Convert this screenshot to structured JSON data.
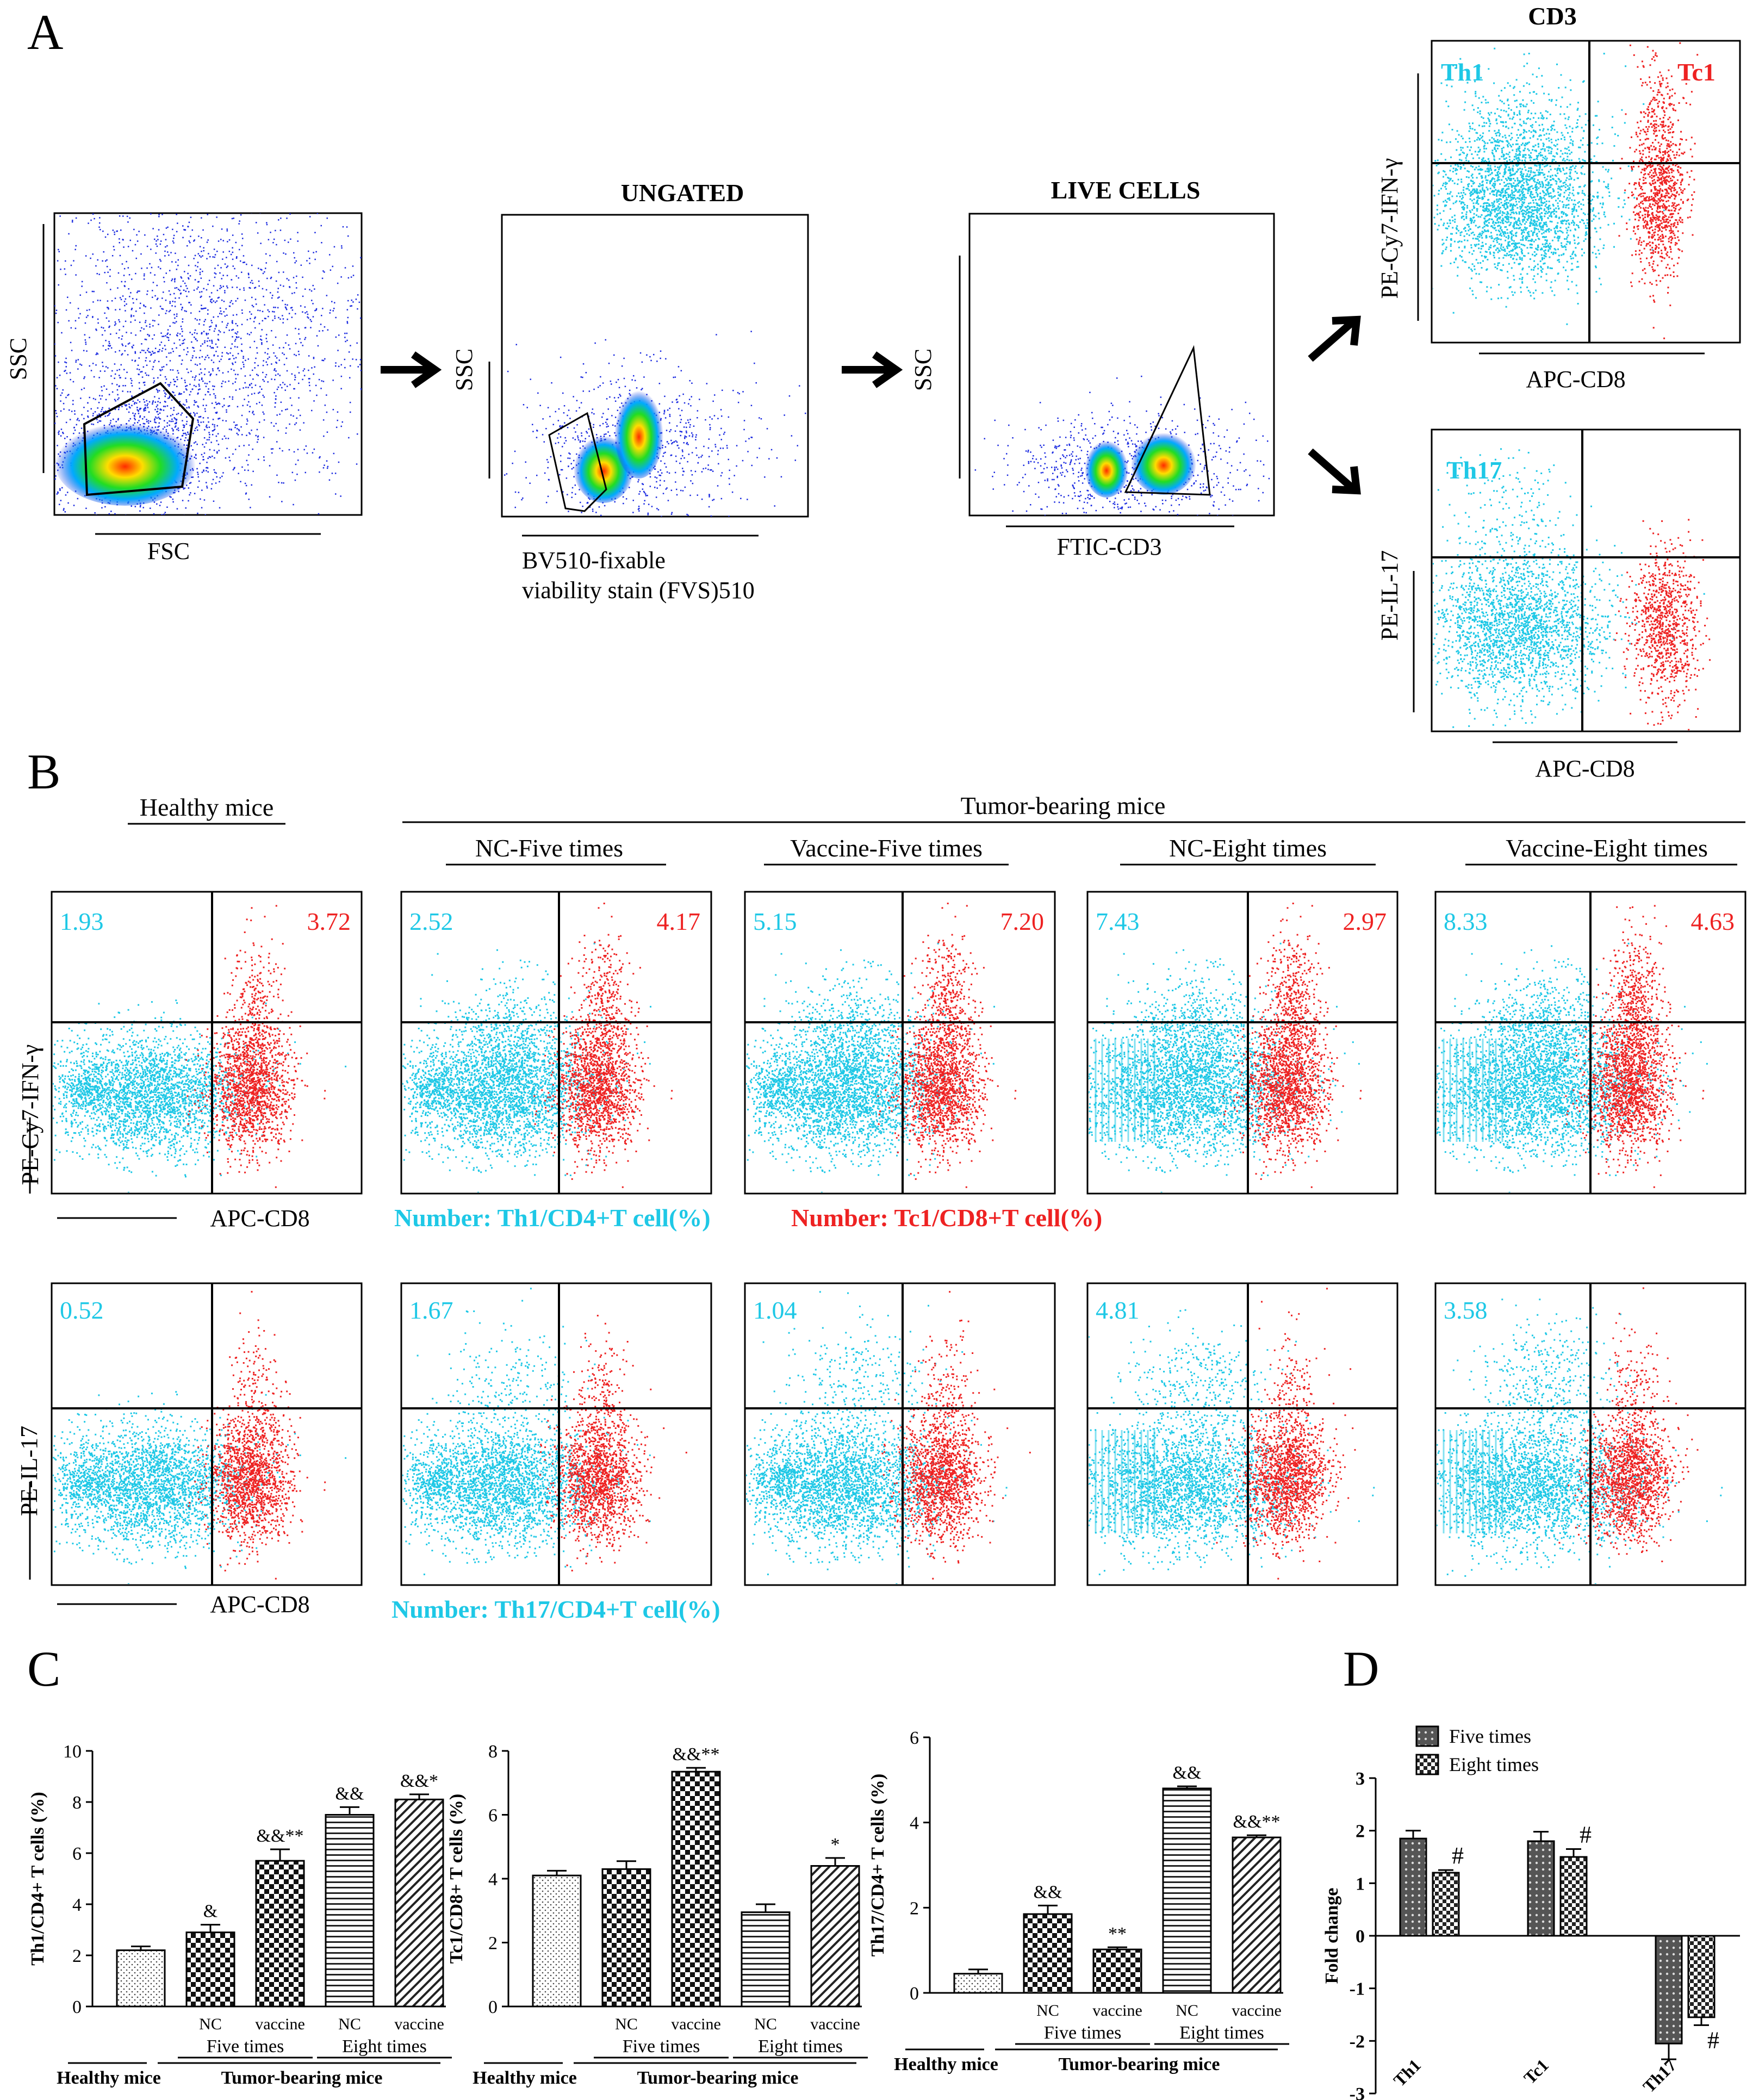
{
  "colors": {
    "cyan": "#1ec8e6",
    "red": "#ee2222",
    "black": "#000000"
  },
  "panels": {
    "A": "A",
    "B": "B",
    "C": "C",
    "D": "D"
  },
  "panelA": {
    "plot1": {
      "ylabel": "SSC",
      "xlabel": "FSC"
    },
    "plot2": {
      "title": "UNGATED",
      "ylabel": "SSC",
      "xlabel_line1": "BV510-fixable",
      "xlabel_line2": "viability stain (FVS)510"
    },
    "plot3": {
      "title": "LIVE CELLS",
      "ylabel": "SSC",
      "xlabel": "FTIC-CD3"
    },
    "plot4": {
      "title": "CD3",
      "ylabel": "PE-Cy7-IFN-γ",
      "xlabel": "APC-CD8",
      "q_left": "Th1",
      "q_right": "Tc1"
    },
    "plot5": {
      "ylabel": "PE-IL-17",
      "xlabel": "APC-CD8",
      "q_left": "Th17"
    }
  },
  "panelB": {
    "healthy_label": "Healthy mice",
    "tumor_label": "Tumor-bearing mice",
    "groups": [
      "NC-Five times",
      "Vaccine-Five times",
      "NC-Eight times",
      "Vaccine-Eight times"
    ],
    "row1": {
      "ylabel": "PE-Cy7-IFN-γ",
      "xlabel": "APC-CD8",
      "th1": [
        "1.93",
        "2.52",
        "5.15",
        "7.43",
        "8.33"
      ],
      "tc1": [
        "3.72",
        "4.17",
        "7.20",
        "2.97",
        "4.63"
      ]
    },
    "row2": {
      "ylabel": "PE-IL-17",
      "xlabel": "APC-CD8",
      "th17": [
        "0.52",
        "1.67",
        "1.04",
        "4.81",
        "3.58"
      ]
    },
    "legend_th1": "Number: Th1/CD4+T cell(%)",
    "legend_tc1": "Number: Tc1/CD8+T cell(%)",
    "legend_th17": "Number: Th17/CD4+T cell(%)"
  },
  "chart_data": [
    {
      "type": "bar",
      "title": "",
      "ylabel": "Th1/CD4+ T cells (%)",
      "ylim": [
        0,
        10
      ],
      "yticks": [
        "0",
        "2",
        "4",
        "6",
        "8",
        "10"
      ],
      "categories": [
        "Healthy mice",
        "NC Five times",
        "vaccine Five times",
        "NC Eight times",
        "vaccine Eight times"
      ],
      "values": [
        2.2,
        2.9,
        5.7,
        7.5,
        8.1
      ],
      "errors": [
        0.15,
        0.3,
        0.45,
        0.3,
        0.2
      ],
      "annotations": [
        "",
        "&",
        "&&**",
        "&&",
        "&&*"
      ],
      "xlabels": {
        "nc": "NC",
        "vaccine": "vaccine",
        "five": "Five times",
        "eight": "Eight times",
        "healthy": "Healthy mice",
        "tumor": "Tumor-bearing mice"
      }
    },
    {
      "type": "bar",
      "title": "",
      "ylabel": "Tc1/CD8+ T cells (%)",
      "ylim": [
        0,
        8
      ],
      "yticks": [
        "0",
        "2",
        "4",
        "6",
        "8"
      ],
      "categories": [
        "Healthy mice",
        "NC Five times",
        "vaccine Five times",
        "NC Eight times",
        "vaccine Eight times"
      ],
      "values": [
        4.1,
        4.3,
        7.35,
        2.95,
        4.4
      ],
      "errors": [
        0.15,
        0.25,
        0.12,
        0.25,
        0.25
      ],
      "annotations": [
        "",
        "",
        "&&**",
        "",
        "*"
      ],
      "xlabels": {
        "nc": "NC",
        "vaccine": "vaccine",
        "five": "Five times",
        "eight": "Eight times",
        "healthy": "Healthy mice",
        "tumor": "Tumor-bearing mice"
      }
    },
    {
      "type": "bar",
      "title": "",
      "ylabel": "Th17/CD4+ T cells (%)",
      "ylim": [
        0,
        6
      ],
      "yticks": [
        "0",
        "2",
        "4",
        "6"
      ],
      "categories": [
        "Healthy mice",
        "NC Five times",
        "vaccine Five times",
        "NC Eight times",
        "vaccine Eight times"
      ],
      "values": [
        0.45,
        1.85,
        1.02,
        4.8,
        3.65
      ],
      "errors": [
        0.1,
        0.2,
        0.05,
        0.05,
        0.05
      ],
      "annotations": [
        "",
        "&&",
        "**",
        "&&",
        "&&**"
      ],
      "xlabels": {
        "nc": "NC",
        "vaccine": "vaccine",
        "five": "Five times",
        "eight": "Eight times",
        "healthy": "Healthy mice",
        "tumor": "Tumor-bearing mice"
      }
    },
    {
      "type": "bar",
      "title": "",
      "ylabel": "Fold change",
      "ylim": [
        -3,
        3
      ],
      "yticks": [
        "-3",
        "-2",
        "-1",
        "0",
        "1",
        "2",
        "3"
      ],
      "categories": [
        "Th1",
        "Tc1",
        "Th17"
      ],
      "series": [
        {
          "name": "Five times",
          "values": [
            1.85,
            1.8,
            -2.05
          ],
          "errors": [
            0.15,
            0.18,
            0.3
          ]
        },
        {
          "name": "Eight times",
          "values": [
            1.2,
            1.5,
            -1.55
          ],
          "errors": [
            0.05,
            0.15,
            0.15
          ]
        }
      ],
      "annotations": [
        "#",
        "#",
        "#"
      ]
    }
  ]
}
